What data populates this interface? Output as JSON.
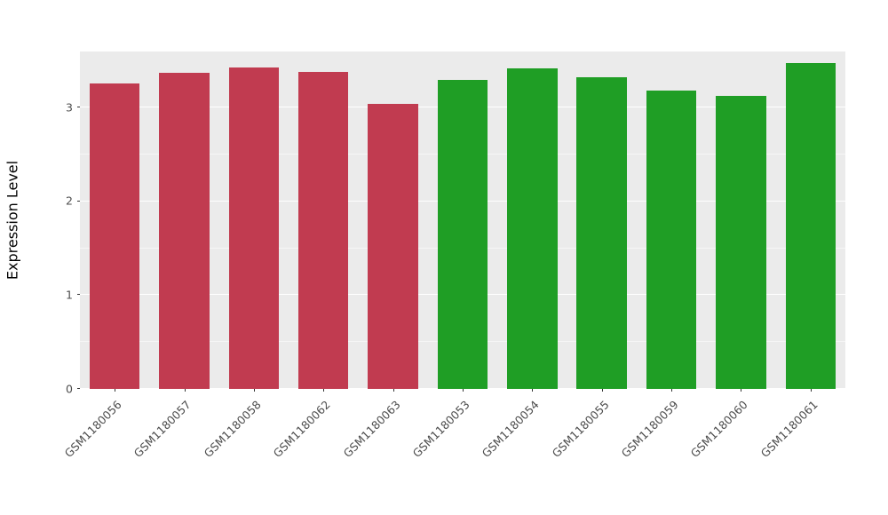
{
  "chart_data": {
    "type": "bar",
    "title": "",
    "xlabel": "",
    "ylabel": "Expression Level",
    "categories": [
      "GSM1180056",
      "GSM1180057",
      "GSM1180058",
      "GSM1180062",
      "GSM1180063",
      "GSM1180053",
      "GSM1180054",
      "GSM1180055",
      "GSM1180059",
      "GSM1180060",
      "GSM1180061"
    ],
    "values": [
      3.26,
      3.37,
      3.43,
      3.38,
      3.04,
      3.3,
      3.42,
      3.33,
      3.18,
      3.13,
      3.48
    ],
    "bar_colors": [
      "#C13B50",
      "#C13B50",
      "#C13B50",
      "#C13B50",
      "#C13B50",
      "#1F9E25",
      "#1F9E25",
      "#1F9E25",
      "#1F9E25",
      "#1F9E25",
      "#1F9E25"
    ],
    "group_colors": {
      "red_group": "#C13B50",
      "green_group": "#1F9E25"
    },
    "ylim": [
      0,
      3.6
    ],
    "yticks": [
      0,
      1,
      2,
      3
    ],
    "yticks_minor": [
      0.5,
      1.5,
      2.5
    ],
    "grid": "on",
    "legend": "none",
    "panel_background": "#EBEBEB",
    "gridline_color": "#FFFFFF",
    "axis_text_color": "#4D4D4D"
  }
}
